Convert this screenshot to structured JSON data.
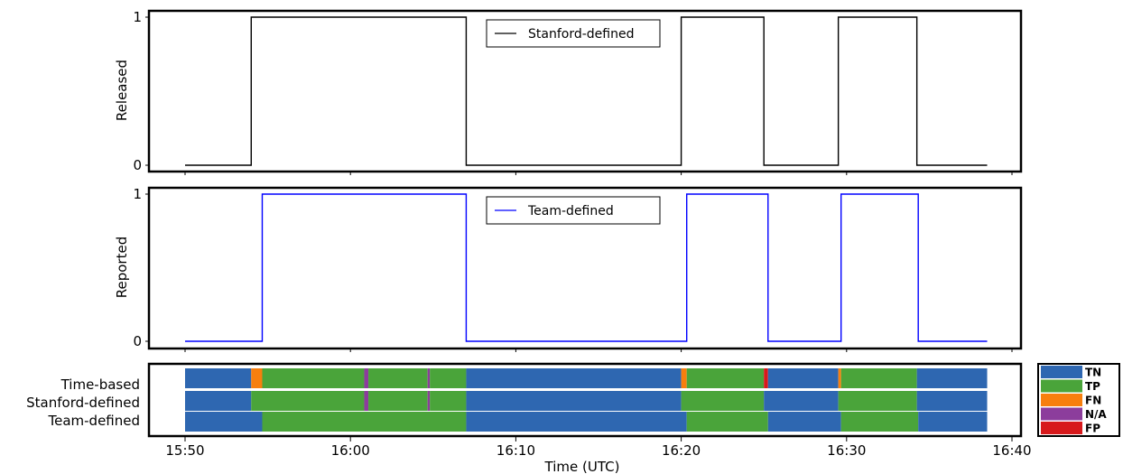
{
  "chart_data": [
    {
      "type": "line",
      "panel": "top",
      "ylabel": "Released",
      "yticks": [
        0,
        1
      ],
      "xlim_minutes": [
        "15:48.6",
        "16:41.6"
      ],
      "legend": {
        "position": "top-center",
        "label": "Stanford-defined"
      },
      "series": [
        {
          "name": "Stanford-defined",
          "color": "#000000",
          "steps": [
            {
              "x": "15:50:00",
              "y": 0
            },
            {
              "x": "15:54:00",
              "y": 1
            },
            {
              "x": "16:07:00",
              "y": 0
            },
            {
              "x": "16:20:00",
              "y": 1
            },
            {
              "x": "16:25:00",
              "y": 0
            },
            {
              "x": "16:29:30",
              "y": 1
            },
            {
              "x": "16:34:15",
              "y": 0
            },
            {
              "x": "16:38:30",
              "y": 0
            }
          ]
        }
      ]
    },
    {
      "type": "line",
      "panel": "middle",
      "ylabel": "Reported",
      "yticks": [
        0,
        1
      ],
      "legend": {
        "position": "top-center",
        "label": "Team-defined"
      },
      "series": [
        {
          "name": "Team-defined",
          "color": "#0000ff",
          "steps": [
            {
              "x": "15:50:00",
              "y": 0
            },
            {
              "x": "15:54:40",
              "y": 1
            },
            {
              "x": "16:07:00",
              "y": 0
            },
            {
              "x": "16:20:20",
              "y": 1
            },
            {
              "x": "16:25:15",
              "y": 0
            },
            {
              "x": "16:29:40",
              "y": 1
            },
            {
              "x": "16:34:20",
              "y": 0
            },
            {
              "x": "16:38:30",
              "y": 0
            }
          ]
        }
      ]
    },
    {
      "type": "heatmap",
      "panel": "bottom",
      "xlabel": "Time (UTC)",
      "xticks": [
        "15:50",
        "16:00",
        "16:10",
        "16:20",
        "16:30",
        "16:40"
      ],
      "rows": [
        "Time-based",
        "Stanford-defined",
        "Team-defined"
      ],
      "legend": {
        "position": "right",
        "entries": [
          {
            "label": "TN",
            "color": "#2e67b1"
          },
          {
            "label": "TP",
            "color": "#4aa43a"
          },
          {
            "label": "FN",
            "color": "#f77f0e"
          },
          {
            "label": "N/A",
            "color": "#8c3d9c"
          },
          {
            "label": "FP",
            "color": "#d7191c"
          }
        ]
      },
      "segments": [
        [
          {
            "start": "15:50:00",
            "end": "15:54:00",
            "class": "TN"
          },
          {
            "start": "15:54:00",
            "end": "15:54:40",
            "class": "FN"
          },
          {
            "start": "15:54:40",
            "end": "16:00:50",
            "class": "TP"
          },
          {
            "start": "16:00:50",
            "end": "16:01:05",
            "class": "N/A"
          },
          {
            "start": "16:01:05",
            "end": "16:04:40",
            "class": "TP"
          },
          {
            "start": "16:04:40",
            "end": "16:04:48",
            "class": "N/A"
          },
          {
            "start": "16:04:48",
            "end": "16:07:00",
            "class": "TP"
          },
          {
            "start": "16:07:00",
            "end": "16:20:00",
            "class": "TN"
          },
          {
            "start": "16:20:00",
            "end": "16:20:20",
            "class": "FN"
          },
          {
            "start": "16:20:20",
            "end": "16:25:00",
            "class": "TP"
          },
          {
            "start": "16:25:00",
            "end": "16:25:15",
            "class": "FP"
          },
          {
            "start": "16:25:15",
            "end": "16:29:30",
            "class": "TN"
          },
          {
            "start": "16:29:30",
            "end": "16:29:40",
            "class": "FN"
          },
          {
            "start": "16:29:40",
            "end": "16:34:15",
            "class": "TP"
          },
          {
            "start": "16:34:15",
            "end": "16:38:30",
            "class": "TN"
          }
        ],
        [
          {
            "start": "15:50:00",
            "end": "15:54:00",
            "class": "TN"
          },
          {
            "start": "15:54:00",
            "end": "16:00:50",
            "class": "TP"
          },
          {
            "start": "16:00:50",
            "end": "16:01:05",
            "class": "N/A"
          },
          {
            "start": "16:01:05",
            "end": "16:04:40",
            "class": "TP"
          },
          {
            "start": "16:04:40",
            "end": "16:04:48",
            "class": "N/A"
          },
          {
            "start": "16:04:48",
            "end": "16:07:00",
            "class": "TP"
          },
          {
            "start": "16:07:00",
            "end": "16:20:00",
            "class": "TN"
          },
          {
            "start": "16:20:00",
            "end": "16:25:00",
            "class": "TP"
          },
          {
            "start": "16:25:00",
            "end": "16:29:30",
            "class": "TN"
          },
          {
            "start": "16:29:30",
            "end": "16:34:15",
            "class": "TP"
          },
          {
            "start": "16:34:15",
            "end": "16:38:30",
            "class": "TN"
          }
        ],
        [
          {
            "start": "15:50:00",
            "end": "15:54:40",
            "class": "TN"
          },
          {
            "start": "15:54:40",
            "end": "16:07:00",
            "class": "TP"
          },
          {
            "start": "16:07:00",
            "end": "16:20:20",
            "class": "TN"
          },
          {
            "start": "16:20:20",
            "end": "16:25:15",
            "class": "TP"
          },
          {
            "start": "16:25:15",
            "end": "16:29:40",
            "class": "TN"
          },
          {
            "start": "16:29:40",
            "end": "16:34:20",
            "class": "TP"
          },
          {
            "start": "16:34:20",
            "end": "16:38:30",
            "class": "TN"
          }
        ]
      ]
    }
  ]
}
